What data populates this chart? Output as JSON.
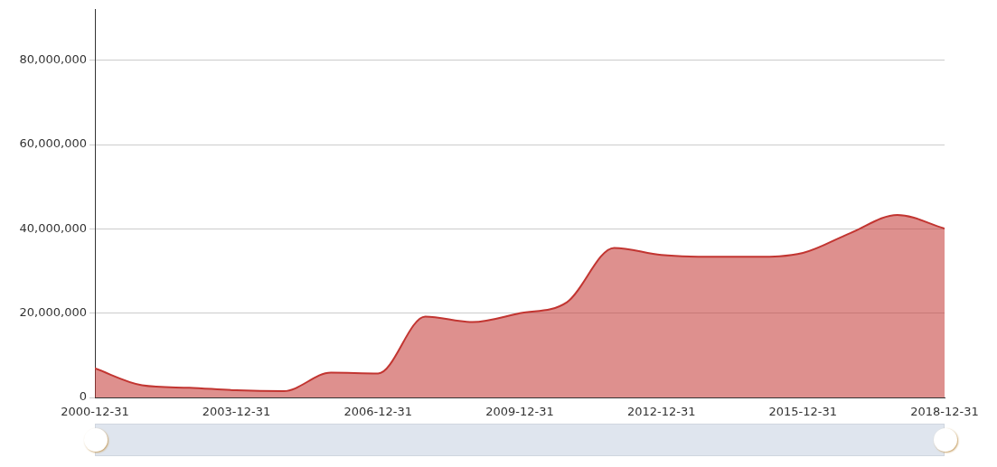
{
  "chart_data": {
    "type": "area",
    "x": [
      "2000-12-31",
      "2001-12-31",
      "2002-12-31",
      "2003-12-31",
      "2004-12-31",
      "2005-12-31",
      "2006-12-31",
      "2007-12-31",
      "2008-12-31",
      "2009-12-31",
      "2010-12-31",
      "2011-12-31",
      "2012-12-31",
      "2013-12-31",
      "2014-12-31",
      "2015-12-31",
      "2016-12-31",
      "2017-12-31",
      "2018-12-31"
    ],
    "series": [
      {
        "color": "#c23531",
        "values": [
          6900000,
          2900000,
          2300000,
          1700000,
          1500000,
          5900000,
          5700000,
          19200000,
          17900000,
          20000000,
          22600000,
          35500000,
          33800000,
          33400000,
          33400000,
          34300000,
          39000000,
          43300000,
          40100000
        ]
      }
    ],
    "xlim": [
      "2000-12-31",
      "2018-12-31"
    ],
    "xticks": [
      "2000-12-31",
      "2003-12-31",
      "2006-12-31",
      "2009-12-31",
      "2012-12-31",
      "2015-12-31",
      "2018-12-31"
    ],
    "ylim": [
      0,
      92000000
    ],
    "yticks": [
      0,
      {
        "value": 20000000,
        "label": "20,000,000"
      },
      {
        "value": 40000000,
        "label": "40,000,000"
      },
      {
        "value": 60000000,
        "label": "60,000,000"
      },
      {
        "value": 80000000,
        "label": "80,000,000"
      }
    ],
    "grid": "y",
    "legend": false,
    "marker": "none",
    "line_style": "solid"
  }
}
